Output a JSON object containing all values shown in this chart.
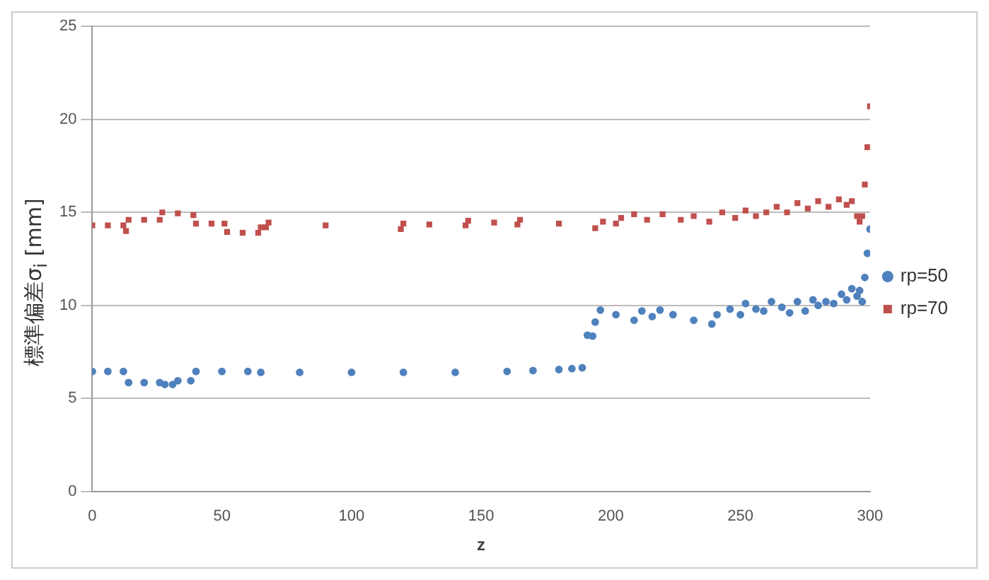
{
  "chart_data": {
    "type": "scatter",
    "xlabel": "z",
    "ylabel": "標準偏差σ$_{i}$ [mm]",
    "xlim": [
      0,
      300
    ],
    "xticks": [
      0,
      50,
      100,
      150,
      200,
      250,
      300
    ],
    "ylim": [
      0,
      25
    ],
    "yticks": [
      0,
      5,
      10,
      15,
      20,
      25
    ],
    "grid": "y",
    "legend": "right",
    "series": [
      {
        "name": "rp=50",
        "color": "#4f81bd",
        "marker": "circle",
        "x": [
          0,
          6,
          12,
          14,
          20,
          26,
          28,
          31,
          33,
          38,
          40,
          50,
          60,
          65,
          80,
          100,
          120,
          140,
          160,
          170,
          180,
          185,
          189,
          191,
          193,
          194,
          196,
          202,
          209,
          212,
          216,
          219,
          224,
          232,
          239,
          241,
          246,
          250,
          252,
          256,
          259,
          262,
          266,
          269,
          272,
          275,
          278,
          280,
          283,
          286,
          289,
          291,
          293,
          295,
          296,
          297,
          298,
          299,
          300
        ],
        "values": [
          6.45,
          6.45,
          6.45,
          5.85,
          5.85,
          5.85,
          5.75,
          5.75,
          5.95,
          5.95,
          6.45,
          6.45,
          6.45,
          6.4,
          6.4,
          6.4,
          6.4,
          6.4,
          6.45,
          6.5,
          6.55,
          6.6,
          6.65,
          8.4,
          8.35,
          9.1,
          9.75,
          9.5,
          9.2,
          9.7,
          9.4,
          9.75,
          9.5,
          9.2,
          9.0,
          9.5,
          9.8,
          9.5,
          10.1,
          9.8,
          9.7,
          10.2,
          9.9,
          9.6,
          10.2,
          9.7,
          10.3,
          10.0,
          10.2,
          10.1,
          10.6,
          10.3,
          10.9,
          10.5,
          10.8,
          10.2,
          11.5,
          12.8,
          14.1
        ]
      },
      {
        "name": "rp=70",
        "color": "#c0504d",
        "marker": "square",
        "x": [
          0,
          6,
          12,
          13,
          14,
          20,
          26,
          27,
          33,
          39,
          40,
          46,
          51,
          52,
          58,
          64,
          65,
          67,
          68,
          90,
          119,
          120,
          130,
          144,
          145,
          155,
          164,
          165,
          180,
          194,
          197,
          202,
          204,
          209,
          214,
          220,
          227,
          232,
          238,
          243,
          248,
          252,
          256,
          260,
          264,
          268,
          272,
          276,
          280,
          284,
          288,
          291,
          293,
          295,
          296,
          297,
          298,
          299,
          300
        ],
        "values": [
          14.3,
          14.3,
          14.3,
          14.0,
          14.6,
          14.6,
          14.6,
          15.0,
          14.95,
          14.85,
          14.4,
          14.4,
          14.4,
          13.95,
          13.9,
          13.9,
          14.2,
          14.2,
          14.45,
          14.3,
          14.1,
          14.4,
          14.35,
          14.3,
          14.55,
          14.45,
          14.35,
          14.6,
          14.4,
          14.15,
          14.5,
          14.4,
          14.7,
          14.9,
          14.6,
          14.9,
          14.6,
          14.8,
          14.5,
          15.0,
          14.7,
          15.1,
          14.8,
          15.0,
          15.3,
          15.0,
          15.5,
          15.2,
          15.6,
          15.3,
          15.7,
          15.4,
          15.6,
          14.8,
          14.5,
          14.8,
          16.5,
          18.5,
          20.7
        ]
      }
    ]
  }
}
